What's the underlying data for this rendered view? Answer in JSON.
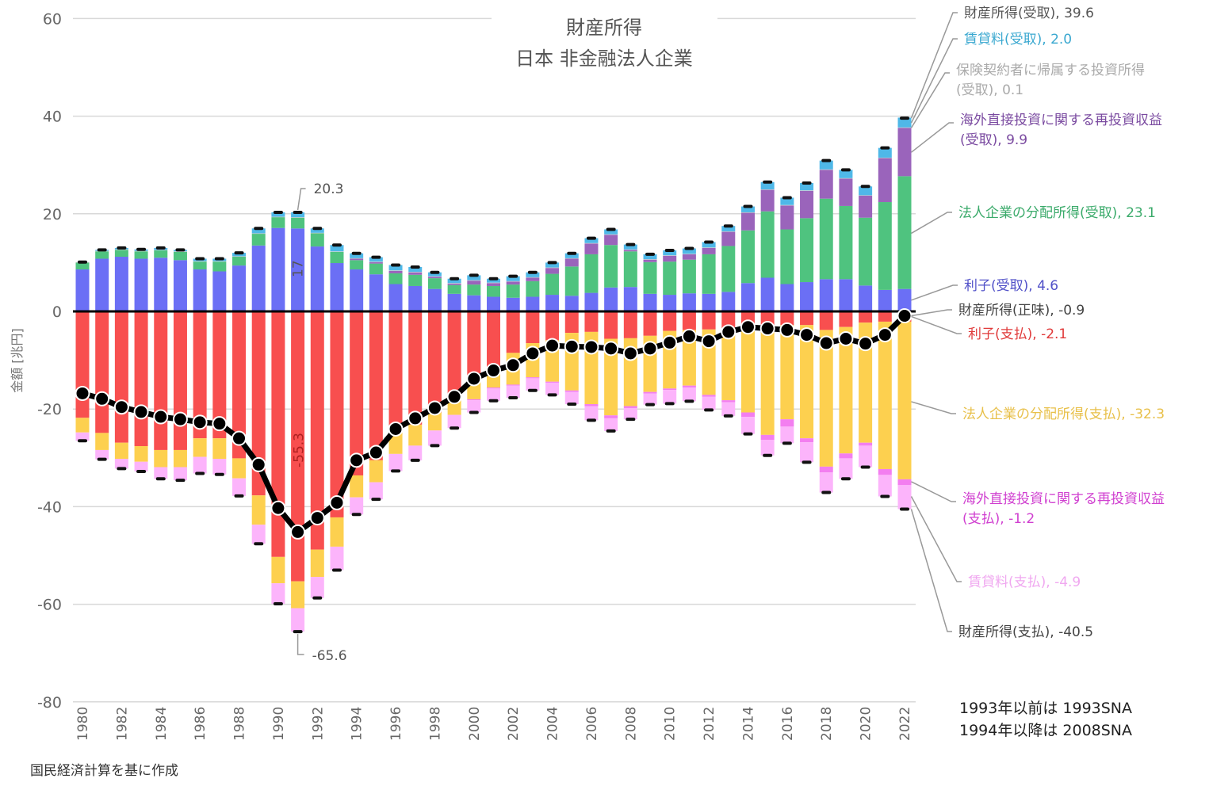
{
  "chart_data": {
    "type": "bar",
    "stacked": true,
    "title": "財産所得",
    "subtitle": "日本 非金融法人企業",
    "xlabel": "",
    "ylabel": "金額 [兆円]",
    "ylim": [
      -80,
      60
    ],
    "yticks": [
      60,
      40,
      20,
      0,
      -20,
      -40,
      -60,
      -80
    ],
    "grid": true,
    "categories": [
      1980,
      1981,
      1982,
      1983,
      1984,
      1985,
      1986,
      1987,
      1988,
      1989,
      1990,
      1991,
      1992,
      1993,
      1994,
      1995,
      1996,
      1997,
      1998,
      1999,
      2000,
      2001,
      2002,
      2003,
      2004,
      2005,
      2006,
      2007,
      2008,
      2009,
      2010,
      2011,
      2012,
      2013,
      2014,
      2015,
      2016,
      2017,
      2018,
      2019,
      2020,
      2021,
      2022
    ],
    "xtick_labels": [
      "1980",
      "1982",
      "1984",
      "1986",
      "1988",
      "1990",
      "1992",
      "1994",
      "1996",
      "1998",
      "2000",
      "2002",
      "2004",
      "2006",
      "2008",
      "2010",
      "2012",
      "2014",
      "2016",
      "2018",
      "2020",
      "2022"
    ],
    "series": [
      {
        "name": "利子(受取)",
        "color": "#6b6ff5",
        "sign": "positive",
        "values": [
          8.6,
          10.8,
          11.2,
          10.8,
          11.0,
          10.5,
          8.6,
          8.2,
          9.4,
          13.5,
          17.1,
          17.0,
          13.3,
          9.9,
          8.6,
          7.6,
          5.6,
          5.2,
          4.6,
          3.6,
          3.3,
          3.0,
          2.8,
          3.0,
          3.4,
          3.2,
          3.8,
          4.9,
          5.0,
          3.6,
          3.4,
          3.7,
          3.6,
          4.0,
          5.8,
          6.9,
          5.6,
          6.0,
          6.6,
          6.6,
          5.3,
          4.4,
          4.6
        ]
      },
      {
        "name": "法人企業の分配所得(受取)",
        "color": "#4fc37f",
        "sign": "positive",
        "values": [
          1.4,
          1.5,
          1.4,
          1.5,
          1.5,
          1.7,
          1.6,
          2.0,
          1.8,
          2.4,
          2.2,
          2.2,
          2.7,
          2.3,
          1.9,
          2.2,
          2.2,
          2.3,
          2.2,
          1.8,
          2.2,
          2.2,
          2.7,
          3.2,
          4.3,
          6.0,
          7.9,
          8.7,
          7.3,
          6.5,
          6.8,
          6.9,
          8.1,
          9.4,
          10.8,
          13.6,
          11.2,
          13.1,
          16.5,
          15.0,
          13.9,
          18.0,
          23.1
        ]
      },
      {
        "name": "海外直接投資に関する再投資収益(受取)",
        "color": "#9a64bb",
        "sign": "positive",
        "values": [
          0,
          0,
          0,
          0,
          0,
          0,
          0,
          0,
          0,
          0,
          0,
          0,
          0,
          0,
          0.3,
          0.3,
          0.5,
          0.5,
          0.3,
          0.3,
          0.8,
          0.6,
          0.6,
          0.7,
          1.2,
          1.6,
          2.2,
          2.1,
          0.3,
          0.5,
          1.2,
          1.1,
          1.3,
          2.9,
          3.6,
          4.4,
          4.9,
          5.6,
          5.9,
          5.6,
          4.5,
          9.0,
          9.9
        ]
      },
      {
        "name": "保険契約者に帰属する投資所得(受取)",
        "color": "#c8c8c8",
        "sign": "positive",
        "values": [
          0.1,
          0.1,
          0.1,
          0.1,
          0.1,
          0.1,
          0.1,
          0.1,
          0.1,
          0.1,
          0.1,
          0.1,
          0.1,
          0.1,
          0.1,
          0.1,
          0.1,
          0.1,
          0.1,
          0.1,
          0.1,
          0.1,
          0.1,
          0.1,
          0.1,
          0.1,
          0.1,
          0.1,
          0.1,
          0.1,
          0.1,
          0.1,
          0.1,
          0.1,
          0.1,
          0.1,
          0.1,
          0.1,
          0.1,
          0.1,
          0.1,
          0.1,
          0.1
        ]
      },
      {
        "name": "賃貸料(受取)",
        "color": "#4fb8e8",
        "sign": "positive",
        "values": [
          0,
          0.2,
          0.3,
          0.3,
          0.4,
          0.3,
          0.5,
          0.5,
          0.7,
          1.0,
          0.9,
          1.0,
          0.9,
          1.3,
          1.0,
          0.9,
          1.1,
          1.0,
          0.8,
          0.9,
          1.0,
          0.8,
          1.0,
          1.0,
          1.0,
          1.0,
          1.0,
          1.0,
          1.0,
          1.0,
          1.0,
          1.1,
          1.1,
          1.1,
          1.2,
          1.5,
          1.5,
          1.5,
          1.8,
          1.7,
          1.8,
          2.0,
          2.0
        ]
      },
      {
        "name": "利子(支払)",
        "color": "#f84f4f",
        "sign": "negative",
        "values": [
          -21.8,
          -24.9,
          -26.9,
          -27.6,
          -28.4,
          -28.4,
          -26.0,
          -26.0,
          -30.1,
          -37.7,
          -50.3,
          -55.3,
          -48.8,
          -42.2,
          -33.6,
          -30.5,
          -24.7,
          -23.2,
          -20.7,
          -18.2,
          -14.0,
          -11.5,
          -8.5,
          -6.5,
          -5.9,
          -4.4,
          -4.2,
          -5.6,
          -5.5,
          -5.0,
          -4.0,
          -3.8,
          -3.7,
          -3.4,
          -3.1,
          -3.1,
          -2.8,
          -2.8,
          -3.8,
          -3.2,
          -2.3,
          -2.1,
          -2.1
        ]
      },
      {
        "name": "法人企業の分配所得(支払)",
        "color": "#fdd04f",
        "sign": "negative",
        "values": [
          -3.0,
          -3.5,
          -3.3,
          -3.2,
          -3.5,
          -3.5,
          -3.8,
          -4.2,
          -4.1,
          -6.0,
          -5.4,
          -5.5,
          -5.6,
          -6.0,
          -4.5,
          -4.5,
          -4.5,
          -4.3,
          -3.7,
          -3.0,
          -4.0,
          -4.1,
          -6.5,
          -7.0,
          -8.5,
          -11.8,
          -14.8,
          -15.7,
          -13.9,
          -11.5,
          -11.8,
          -11.4,
          -13.4,
          -14.8,
          -17.6,
          -22.2,
          -19.3,
          -23.2,
          -28.0,
          -25.9,
          -24.6,
          -30.2,
          -32.3
        ]
      },
      {
        "name": "海外直接投資に関する再投資収益(支払)",
        "color": "#f37ef0",
        "sign": "negative",
        "values": [
          0,
          0,
          0,
          0,
          0,
          0,
          0,
          0,
          0,
          0,
          0,
          0,
          0,
          0,
          0,
          0,
          0,
          0,
          0,
          0,
          -0.2,
          -0.2,
          -0.2,
          -0.2,
          -0.2,
          -0.3,
          -0.4,
          -0.6,
          -0.4,
          -0.3,
          -0.3,
          -0.4,
          -0.4,
          -0.4,
          -0.9,
          -1.0,
          -1.5,
          -0.8,
          -1.2,
          -1.0,
          -0.6,
          -1.2,
          -1.2
        ]
      },
      {
        "name": "賃貸料(支払)",
        "color": "#fcb4fb",
        "sign": "negative",
        "values": [
          -1.7,
          -1.9,
          -2.0,
          -2.0,
          -2.4,
          -2.7,
          -3.4,
          -3.2,
          -3.6,
          -3.9,
          -4.2,
          -4.8,
          -4.3,
          -4.8,
          -3.5,
          -3.5,
          -3.5,
          -3.0,
          -3.1,
          -2.7,
          -2.5,
          -2.5,
          -2.5,
          -2.5,
          -2.5,
          -2.5,
          -2.9,
          -2.6,
          -2.3,
          -2.3,
          -2.8,
          -2.8,
          -2.7,
          -2.8,
          -3.5,
          -3.2,
          -3.4,
          -4.1,
          -4.1,
          -4.2,
          -4.4,
          -4.4,
          -4.9
        ]
      },
      {
        "name": "財産所得(正味)",
        "color": "#000000",
        "type": "line",
        "values": [
          -16.8,
          -17.9,
          -19.6,
          -20.6,
          -21.6,
          -22.1,
          -22.7,
          -23.0,
          -26.0,
          -31.4,
          -40.3,
          -45.2,
          -42.3,
          -39.2,
          -30.5,
          -28.9,
          -24.1,
          -21.9,
          -19.8,
          -17.5,
          -13.8,
          -12.1,
          -11.0,
          -8.6,
          -7.0,
          -7.2,
          -7.3,
          -7.6,
          -8.6,
          -7.6,
          -6.4,
          -5.1,
          -6.1,
          -4.2,
          -3.2,
          -3.5,
          -3.8,
          -4.8,
          -6.5,
          -5.6,
          -6.6,
          -4.8,
          -0.9
        ]
      }
    ],
    "totals": {
      "received": [
        10.1,
        12.6,
        13.0,
        12.7,
        13.0,
        12.6,
        10.8,
        10.8,
        12.0,
        17.0,
        20.3,
        20.3,
        17.0,
        13.6,
        11.9,
        11.1,
        9.5,
        9.1,
        8.0,
        6.7,
        7.4,
        6.7,
        7.2,
        8.0,
        10.0,
        11.9,
        15.0,
        16.8,
        13.7,
        11.7,
        12.5,
        12.9,
        14.2,
        17.5,
        21.5,
        26.5,
        23.3,
        26.3,
        30.9,
        29.0,
        25.6,
        33.5,
        39.6
      ],
      "paid": [
        -26.5,
        -30.3,
        -32.2,
        -32.8,
        -34.3,
        -34.6,
        -33.2,
        -33.4,
        -37.8,
        -47.6,
        -59.9,
        -65.6,
        -58.7,
        -53.0,
        -41.6,
        -38.5,
        -32.7,
        -30.5,
        -27.5,
        -23.9,
        -20.7,
        -18.3,
        -17.7,
        -16.2,
        -17.1,
        -19.0,
        -22.3,
        -24.5,
        -22.1,
        -19.1,
        -18.9,
        -18.4,
        -20.2,
        -21.4,
        -25.1,
        -29.5,
        -27.0,
        -30.9,
        -37.1,
        -34.3,
        -31.9,
        -37.9,
        -40.5
      ]
    },
    "annotations": [
      {
        "text": "20.3",
        "target": "1991 受取 total"
      },
      {
        "text": "17",
        "target": "1991 利子(受取)"
      },
      {
        "text": "-55.3",
        "target": "1991 利子(支払)"
      },
      {
        "text": "-65.6",
        "target": "1991 支払 total"
      }
    ],
    "legend_labels": [
      {
        "text": "財産所得(受取), 39.6",
        "color": "#555555"
      },
      {
        "text": "賃貸料(受取), 2.0",
        "color": "#3aa8d0"
      },
      {
        "text_line1": "保険契約者に帰属する投資所得",
        "text_line2": "(受取), 0.1",
        "color": "#aaaaaa"
      },
      {
        "text_line1": "海外直接投資に関する再投資収益",
        "text_line2": "(受取), 9.9",
        "color": "#7a4aa0"
      },
      {
        "text": "法人企業の分配所得(受取), 23.1",
        "color": "#3aaa6a"
      },
      {
        "text": "利子(受取), 4.6",
        "color": "#5050c8"
      },
      {
        "text": "財産所得(正味), -0.9",
        "color": "#444444"
      },
      {
        "text": "利子(支払), -2.1",
        "color": "#e03a3a"
      },
      {
        "text": "法人企業の分配所得(支払), -32.3",
        "color": "#e8c04a"
      },
      {
        "text_line1": "海外直接投資に関する再投資収益",
        "text_line2": "(支払), -1.2",
        "color": "#d040d0"
      },
      {
        "text": "賃貸料(支払), -4.9",
        "color": "#f0a8f0"
      },
      {
        "text": "財産所得(支払), -40.5",
        "color": "#444444"
      }
    ],
    "notes": [
      "1993年以前は 1993SNA",
      "1994年以降は 2008SNA"
    ],
    "source": "国民経済計算を基に作成"
  }
}
